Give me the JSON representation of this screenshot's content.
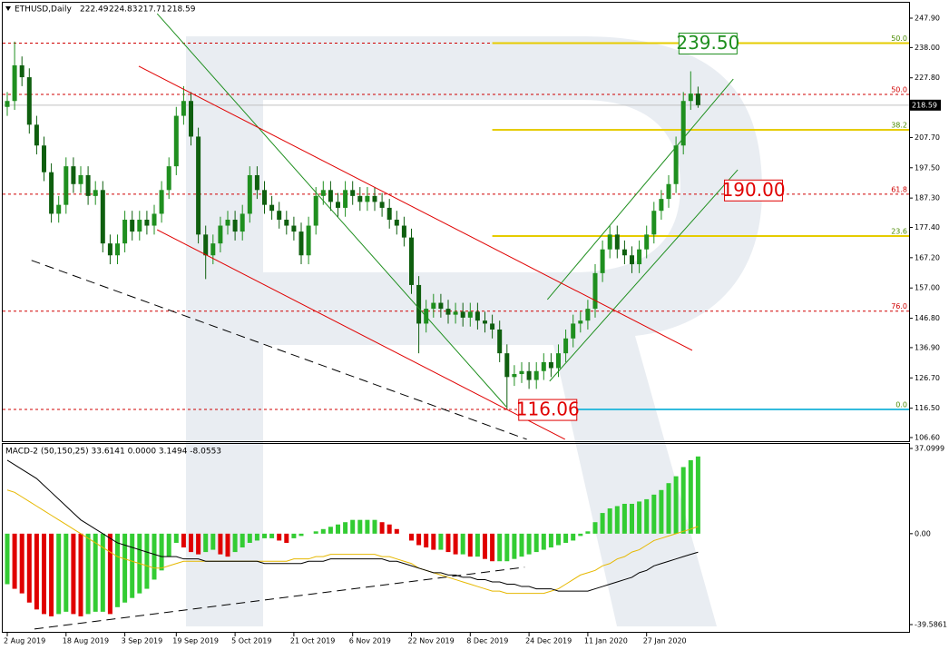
{
  "chart_data": {
    "type": "candlestick",
    "symbol": "ETHUSD,Daily",
    "up_color": "#1f8f1f",
    "down_color": "#0f5f0f",
    "categories": [
      "2 Aug 2019",
      null,
      null,
      null,
      null,
      null,
      null,
      null,
      "18 Aug 2019",
      null,
      null,
      null,
      null,
      null,
      null,
      null,
      "3 Sep 2019",
      null,
      null,
      null,
      null,
      null,
      null,
      "19 Sep 2019",
      null,
      null,
      null,
      null,
      null,
      null,
      null,
      "5 Oct 2019",
      null,
      null,
      null,
      null,
      null,
      null,
      null,
      "21 Oct 2019",
      null,
      null,
      null,
      null,
      null,
      null,
      null,
      "6 Nov 2019",
      null,
      null,
      null,
      null,
      null,
      null,
      null,
      "22 Nov 2019",
      null,
      null,
      null,
      null,
      null,
      null,
      null,
      "8 Dec 2019",
      null,
      null,
      null,
      null,
      null,
      null,
      null,
      "24 Dec 2019",
      null,
      null,
      null,
      null,
      null,
      null,
      null,
      "11 Jan 2020",
      null,
      null,
      null,
      null,
      null,
      null,
      null,
      "27 Jan 2020",
      null,
      null,
      null,
      null,
      null,
      null,
      null
    ],
    "candles": {
      "open": [
        218,
        220,
        232,
        228,
        212,
        205,
        196,
        182,
        185,
        198,
        192,
        195,
        188,
        190,
        172,
        168,
        172,
        180,
        176,
        180,
        178,
        182,
        190,
        198,
        215,
        220,
        208,
        175,
        168,
        172,
        178,
        180,
        176,
        182,
        195,
        190,
        185,
        183,
        180,
        178,
        176,
        168,
        178,
        188,
        190,
        186,
        184,
        190,
        188,
        186,
        188,
        186,
        184,
        180,
        178,
        174,
        158,
        145,
        150,
        152,
        150,
        148,
        149,
        147,
        149,
        146,
        145,
        143,
        135,
        127,
        128,
        129,
        126,
        129,
        132,
        130,
        135,
        140,
        145,
        146,
        150,
        162,
        170,
        175,
        170,
        168,
        165,
        170,
        175,
        183,
        187,
        192,
        205,
        220,
        222.49
      ],
      "high": [
        223,
        240,
        235,
        231,
        215,
        208,
        199,
        188,
        201,
        201,
        198,
        198,
        193,
        193,
        175,
        175,
        183,
        183,
        183,
        183,
        185,
        193,
        201,
        218,
        225,
        223,
        211,
        178,
        175,
        181,
        183,
        183,
        185,
        198,
        198,
        193,
        188,
        186,
        183,
        181,
        179,
        181,
        191,
        193,
        193,
        189,
        193,
        193,
        191,
        191,
        191,
        189,
        187,
        183,
        181,
        177,
        161,
        153,
        155,
        155,
        153,
        152,
        152,
        152,
        152,
        149,
        148,
        146,
        138,
        131,
        132,
        132,
        132,
        135,
        135,
        138,
        143,
        148,
        149,
        153,
        165,
        173,
        178,
        178,
        173,
        171,
        173,
        178,
        186,
        190,
        195,
        208,
        223,
        230,
        224.83
      ],
      "low": [
        215,
        217,
        225,
        209,
        202,
        193,
        179,
        179,
        182,
        189,
        189,
        185,
        185,
        169,
        165,
        165,
        169,
        173,
        173,
        175,
        175,
        179,
        187,
        195,
        212,
        205,
        172,
        160,
        165,
        169,
        175,
        173,
        173,
        179,
        187,
        182,
        180,
        177,
        175,
        173,
        165,
        165,
        175,
        185,
        183,
        181,
        181,
        185,
        183,
        183,
        183,
        181,
        177,
        175,
        171,
        155,
        135,
        142,
        147,
        147,
        145,
        145,
        144,
        144,
        143,
        142,
        140,
        132,
        116.06,
        124,
        125,
        123,
        123,
        126,
        127,
        127,
        132,
        137,
        142,
        143,
        147,
        159,
        167,
        167,
        165,
        162,
        162,
        167,
        172,
        180,
        184,
        189,
        202,
        217,
        217.71
      ],
      "close": [
        220,
        232,
        228,
        212,
        205,
        196,
        182,
        185,
        198,
        192,
        195,
        188,
        190,
        172,
        168,
        172,
        180,
        176,
        180,
        178,
        182,
        190,
        198,
        215,
        220,
        208,
        175,
        168,
        172,
        178,
        180,
        176,
        182,
        195,
        190,
        185,
        183,
        180,
        178,
        176,
        168,
        178,
        188,
        190,
        186,
        184,
        190,
        188,
        186,
        188,
        186,
        184,
        180,
        178,
        174,
        158,
        145,
        150,
        152,
        150,
        148,
        149,
        147,
        149,
        146,
        145,
        143,
        135,
        127,
        128,
        129,
        126,
        129,
        132,
        130,
        135,
        140,
        145,
        146,
        150,
        162,
        170,
        175,
        170,
        168,
        165,
        170,
        175,
        183,
        187,
        192,
        205,
        220,
        222.49,
        218.59
      ]
    },
    "ylim": [
      106.6,
      247.9
    ],
    "yticks": [
      {
        "value": 247.9,
        "label": "247.90"
      },
      {
        "value": 238,
        "label": "238.00"
      },
      {
        "value": 227.8,
        "label": "227.80"
      },
      {
        "value": 217.6,
        "label": "217.60"
      },
      {
        "value": 207.7,
        "label": "207.70"
      },
      {
        "value": 197.5,
        "label": "197.50"
      },
      {
        "value": 187.3,
        "label": "187.30"
      },
      {
        "value": 177.4,
        "label": "177.40"
      },
      {
        "value": 167.2,
        "label": "167.20"
      },
      {
        "value": 157,
        "label": "157.00"
      },
      {
        "value": 146.8,
        "label": "146.80"
      },
      {
        "value": 136.9,
        "label": "136.90"
      },
      {
        "value": 126.7,
        "label": "126.70"
      },
      {
        "value": 116.5,
        "label": "116.50"
      },
      {
        "value": 106.6,
        "label": "106.60"
      }
    ],
    "levels": [
      {
        "price": 239.5,
        "color": "#d00000",
        "dashed": true
      },
      {
        "price": 239.5,
        "color": "#e6cc00",
        "start": 66,
        "label": "50.0",
        "label_color": "#4a8a00"
      },
      {
        "price": 222.2,
        "color": "#d00000",
        "dashed": true,
        "label": "50.0",
        "label_color": "#d00000"
      },
      {
        "price": 210.3,
        "color": "#e6cc00",
        "start": 66,
        "label": "38.2",
        "label_color": "#4a8a00"
      },
      {
        "price": 188.6,
        "color": "#d00000",
        "dashed": true,
        "label": "61.8",
        "label_color": "#d00000"
      },
      {
        "price": 174.5,
        "color": "#e6cc00",
        "start": 66,
        "label": "23.6",
        "label_color": "#4a8a00"
      },
      {
        "price": 149.2,
        "color": "#d00000",
        "dashed": true,
        "label": "76.0",
        "label_color": "#d00000"
      },
      {
        "price": 116.1,
        "color": "#d00000",
        "dashed": true
      },
      {
        "price": 116.1,
        "color": "#33bbdd",
        "start": 70,
        "label": "0.0",
        "label_color": "#4a8a00"
      }
    ],
    "trendlines": [
      {
        "from": [
          20.4,
          249.4
        ],
        "to": [
          67.9,
          117.0
        ],
        "color": "#1f8f1f"
      },
      {
        "from": [
          73.5,
          153.1
        ],
        "to": [
          98.8,
          227.4
        ],
        "color": "#1f8f1f"
      },
      {
        "from": [
          73.8,
          125.6
        ],
        "to": [
          99.4,
          196.8
        ],
        "color": "#1f8f1f"
      },
      {
        "from": [
          17.9,
          231.7
        ],
        "to": [
          93.2,
          136.0
        ],
        "color": "#e00000"
      },
      {
        "from": [
          20.4,
          176.6
        ],
        "to": [
          75.9,
          106.0
        ],
        "color": "#e00000"
      },
      {
        "from": [
          3.3,
          166.3
        ],
        "to": [
          70.7,
          106.0
        ],
        "color": "#000000",
        "dashed": true
      }
    ],
    "annotations": [
      {
        "value": 239.5,
        "label": "239.50",
        "at": 91.4,
        "color": "#1f8f1f"
      },
      {
        "value": 190,
        "label": "190.00",
        "at": 97.6,
        "color": "#e00000"
      },
      {
        "value": 116.06,
        "label": "116.06",
        "at": 69.6,
        "color": "#e00000"
      }
    ],
    "macd": {
      "type": "histogram",
      "title": "MACD-2 (50,150,25) 33.6141 0.0000 3.1494 -8.0553",
      "rise_color": "#33cc33",
      "fall_color": "#e00000",
      "values": [
        -22,
        -24,
        -26,
        -30,
        -33,
        -35,
        -36,
        -35,
        -34,
        -35,
        -36,
        -35,
        -34,
        -34,
        -35,
        -32,
        -30,
        -28,
        -26,
        -24,
        -20,
        -16,
        -10,
        -4,
        -6,
        -8,
        -9,
        -8,
        -7,
        -9,
        -10,
        -8,
        -6,
        -4,
        -3,
        -2,
        -2,
        -3,
        -4,
        -2,
        -1,
        0,
        1,
        2,
        3,
        4,
        5,
        6,
        6,
        6,
        6,
        5,
        4,
        2,
        0,
        -3,
        -5,
        -6,
        -7,
        -7,
        -8,
        -9,
        -9,
        -10,
        -10,
        -11,
        -12,
        -12,
        -12,
        -11,
        -10,
        -9,
        -8,
        -7,
        -6,
        -5,
        -4,
        -3,
        -1,
        1,
        5,
        9,
        11,
        12,
        13,
        13,
        14,
        15,
        17,
        19,
        22,
        25,
        29,
        32,
        33.6141
      ],
      "signal": {
        "color": "#e6b800",
        "values": [
          19,
          18,
          16,
          14,
          12,
          10,
          8,
          6,
          4,
          2,
          0,
          -2,
          -4,
          -6,
          -8,
          -10,
          -11,
          -12,
          -13,
          -14,
          -15,
          -15,
          -14,
          -13,
          -12,
          -12,
          -12,
          -12,
          -12,
          -12,
          -12,
          -12,
          -12,
          -12,
          -12,
          -12,
          -12,
          -12,
          -12,
          -11,
          -11,
          -11,
          -10,
          -10,
          -9,
          -9,
          -9,
          -9,
          -9,
          -9,
          -9,
          -10,
          -10,
          -11,
          -12,
          -13,
          -15,
          -16,
          -17,
          -18,
          -19,
          -20,
          -21,
          -22,
          -23,
          -24,
          -25,
          -25,
          -26,
          -26,
          -26,
          -26,
          -26,
          -26,
          -25,
          -24,
          -22,
          -20,
          -18,
          -17,
          -16,
          -14,
          -13,
          -11,
          -10,
          -8,
          -7,
          -5,
          -3,
          -2,
          -1,
          0,
          1,
          2,
          3.1494
        ]
      },
      "main": {
        "color": "#000000",
        "values": [
          32,
          30,
          28,
          26,
          24,
          21,
          18,
          15,
          12,
          9,
          6,
          4,
          2,
          0,
          -2,
          -4,
          -5,
          -6,
          -7,
          -8,
          -9,
          -10,
          -10,
          -10,
          -11,
          -11,
          -11,
          -12,
          -12,
          -12,
          -12,
          -12,
          -12,
          -12,
          -12,
          -13,
          -13,
          -13,
          -13,
          -13,
          -13,
          -12,
          -12,
          -12,
          -11,
          -11,
          -11,
          -11,
          -11,
          -11,
          -11,
          -11,
          -12,
          -12,
          -13,
          -14,
          -15,
          -16,
          -17,
          -17,
          -18,
          -18,
          -19,
          -19,
          -20,
          -20,
          -21,
          -21,
          -22,
          -22,
          -23,
          -23,
          -24,
          -24,
          -24,
          -25,
          -25,
          -25,
          -25,
          -25,
          -24,
          -23,
          -22,
          -21,
          -20,
          -19,
          -17,
          -16,
          -14,
          -13,
          -12,
          -11,
          -10,
          -9,
          -8.0553
        ]
      },
      "ylim": [
        -39.5861,
        37.0999
      ],
      "yticks": [
        37.0999,
        {
          "value": 0,
          "label": "0.00"
        },
        -39.5861
      ],
      "trendlines": [
        {
          "from": [
            3.7,
            -41.5
          ],
          "to": [
            70.4,
            -14.6
          ],
          "color": "#000000",
          "dashed": true
        }
      ]
    }
  }
}
